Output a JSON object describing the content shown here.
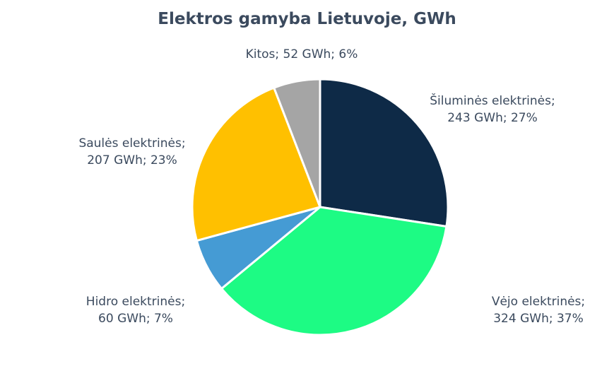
{
  "chart_data": {
    "type": "pie",
    "title": "Elektros gamyba Lietuvoje, GWh",
    "start_angle_deg": 0,
    "direction": "clockwise",
    "slices": [
      {
        "label": "Šiluminės elektrinės",
        "value": 243,
        "percent": 27,
        "value_text": "243 GWh; 27%",
        "color": "#0e2a47"
      },
      {
        "label": "Vėjo elektrinės",
        "value": 324,
        "percent": 37,
        "value_text": "324 GWh; 37%",
        "color": "#1dfb84"
      },
      {
        "label": "Hidro elektrinės",
        "value": 60,
        "percent": 7,
        "value_text": "60 GWh; 7%",
        "color": "#459bd4"
      },
      {
        "label": "Saulės elektrinės",
        "value": 207,
        "percent": 23,
        "value_text": "207 GWh; 23%",
        "color": "#ffc000"
      },
      {
        "label": "Kitos",
        "value": 52,
        "percent": 6,
        "value_text": "52 GWh; 6%",
        "color": "#a5a5a5"
      }
    ],
    "label_color": "#3b4a5e",
    "data_labels": "outside",
    "legend": "none"
  }
}
